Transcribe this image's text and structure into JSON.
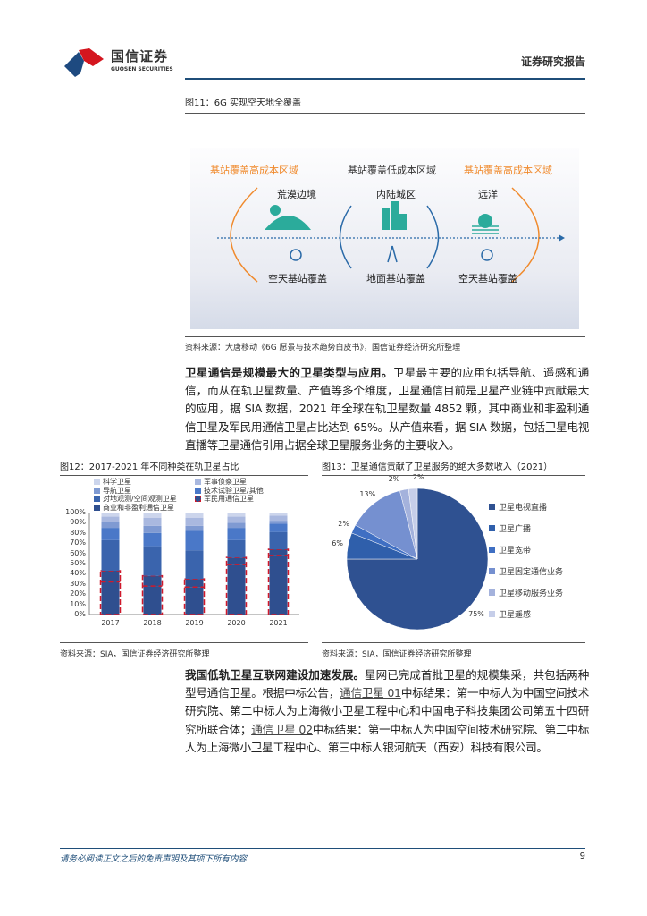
{
  "header": {
    "logo_cn": "国信证券",
    "logo_en": "GUOSEN SECURITIES",
    "report_type": "证券研究报告",
    "rule_color": "#1f4e79"
  },
  "fig11": {
    "caption": "图11：6G 实现空天地全覆盖",
    "zones": [
      "基站覆盖高成本区域",
      "基站覆盖低成本区域",
      "基站覆盖高成本区域"
    ],
    "places": [
      "荒漠边境",
      "内陆城区",
      "远洋"
    ],
    "coverage": [
      "空天基站覆盖",
      "地面基站覆盖",
      "空天基站覆盖"
    ],
    "source": "资料来源：大唐移动《6G 愿景与技术趋势白皮书》，国信证券经济研究所整理",
    "accent": "#f08a2c",
    "icon_color": "#2bab9b"
  },
  "para1": {
    "bold": "卫星通信是规模最大的卫星类型与应用。",
    "text": "卫星最主要的应用包括导航、遥感和通信，而从在轨卫星数量、产值等多个维度，卫星通信目前是卫星产业链中贡献最大的应用，据 SIA 数据，2021 年全球在轨卫星数量 4852 颗，其中商业和非盈利通信卫星及军民用通信卫星占比达到 65%。从产值来看，据 SIA 数据，包括卫星电视直播等卫星通信引用占据全球卫星服务业务的主要收入。"
  },
  "chart_data": [
    {
      "type": "bar",
      "stacked": true,
      "title": "图12：2017-2021 年不同种类在轨卫星占比",
      "categories": [
        "2017",
        "2018",
        "2019",
        "2020",
        "2021"
      ],
      "yticks": [
        "0%",
        "10%",
        "20%",
        "30%",
        "40%",
        "50%",
        "60%",
        "70%",
        "80%",
        "90%",
        "100%"
      ],
      "ylim": [
        0,
        100
      ],
      "series": [
        {
          "name": "商业和非盈利通信卫星",
          "color": "#2f4f8f",
          "values": [
            32,
            28,
            27,
            49,
            58
          ]
        },
        {
          "name": "军民用通信卫星",
          "color": "#2f4f8f",
          "outline": "#d0192b",
          "values": [
            11,
            10,
            8,
            7,
            6
          ]
        },
        {
          "name": "对地观测/空间观测卫星",
          "color": "#3a64ad",
          "values": [
            30,
            29,
            28,
            17,
            17
          ]
        },
        {
          "name": "技术试验卫星/其他",
          "color": "#4a78c8",
          "values": [
            12,
            13,
            19,
            12,
            8
          ]
        },
        {
          "name": "导航卫星",
          "color": "#7f9ad2",
          "values": [
            6,
            7,
            5,
            5,
            3
          ]
        },
        {
          "name": "军事侦察卫星",
          "color": "#a9b8df",
          "values": [
            5,
            8,
            8,
            6,
            5
          ]
        },
        {
          "name": "科学卫星",
          "color": "#ccd5ec",
          "values": [
            4,
            5,
            5,
            4,
            3
          ]
        }
      ],
      "legend_order": [
        "科学卫星",
        "军事侦察卫星",
        "导航卫星",
        "技术试验卫星/其他",
        "对地观测/空间观测卫星",
        "军民用通信卫星",
        "商业和非盈利通信卫星"
      ],
      "source": "资料来源：SIA，国信证券经济研究所整理"
    },
    {
      "type": "pie",
      "title": "图13：卫星通信贡献了卫星服务的绝大多数收入（2021）",
      "slices": [
        {
          "name": "卫星电视直播",
          "value": 75,
          "label": "75%",
          "color": "#2f5191"
        },
        {
          "name": "卫星广播",
          "value": 6,
          "label": "6%",
          "color": "#2f5fab"
        },
        {
          "name": "卫星宽带",
          "value": 2,
          "label": "2%",
          "color": "#3f6fc3"
        },
        {
          "name": "卫星固定通信业务",
          "value": 13,
          "label": "13%",
          "color": "#7590d0"
        },
        {
          "name": "卫星移动服务业务",
          "value": 2,
          "label": "2%",
          "color": "#a4b2dc"
        },
        {
          "name": "卫星遥感",
          "value": 2,
          "label": "2%",
          "color": "#c6cee9"
        }
      ],
      "source": "资料来源：SIA，国信证券经济研究所整理"
    }
  ],
  "para2": {
    "bold": "我国低轨卫星互联网建设加速发展。",
    "t1": "星网已完成首批卫星的规模集采，共包括两种型号通信卫星。根据中标公告，",
    "link1": "通信卫星 01",
    "t2": "中标结果：第一中标人为中国空间技术研究院、第二中标人为上海微小卫星工程中心和中国电子科技集团公司第五十四研究所联合体；",
    "link2": "通信卫星 02",
    "t3": "中标结果：第一中标人为中国空间技术研究院、第二中标人为上海微小卫星工程中心、第三中标人银河航天（西安）科技有限公司。"
  },
  "footer": {
    "disclaimer": "请务必阅读正文之后的免责声明及其项下所有内容",
    "page": "9"
  }
}
